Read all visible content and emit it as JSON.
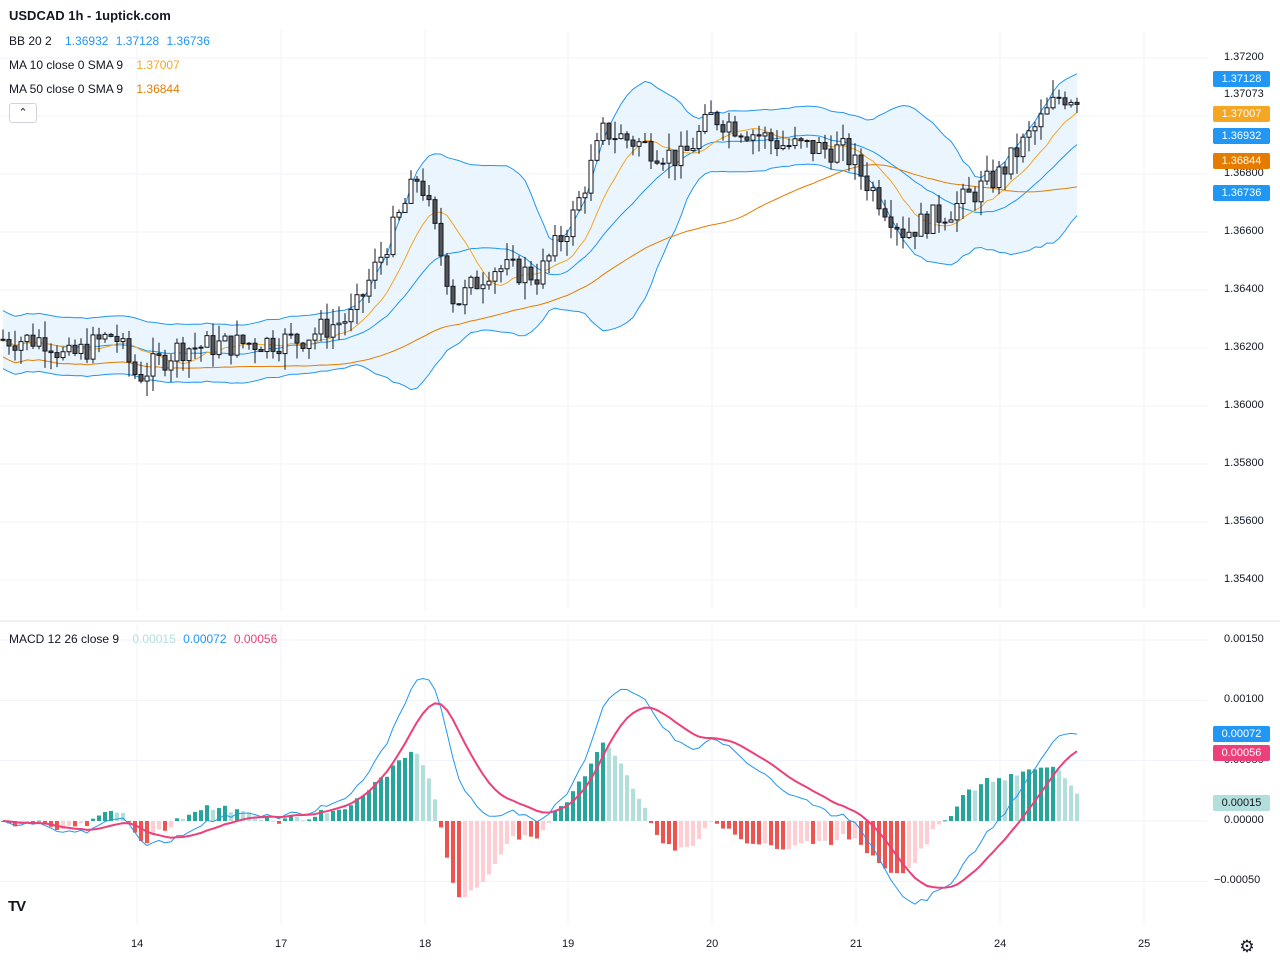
{
  "header": {
    "title": "USDCAD 1h - 1uptick.com",
    "bb": {
      "label": "BB 20 2",
      "v1": "1.36932",
      "v2": "1.37128",
      "v3": "1.36736"
    },
    "ma10": {
      "label": "MA 10 close 0 SMA 9",
      "value": "1.37007"
    },
    "ma50": {
      "label": "MA 50 close 0 SMA 9",
      "value": "1.36844"
    },
    "collapse_icon": "chevron-up-icon"
  },
  "macd_legend": {
    "label": "MACD 12 26 close 9",
    "hist": "0.00015",
    "macd": "0.00072",
    "signal": "0.00056"
  },
  "price_axis": {
    "ticks": [
      "1.37200",
      "1.36800",
      "1.36600",
      "1.36400",
      "1.36200",
      "1.36000",
      "1.35800",
      "1.35600",
      "1.35400"
    ],
    "tick_values": [
      1.372,
      1.368,
      1.366,
      1.364,
      1.362,
      1.36,
      1.358,
      1.356,
      1.354
    ],
    "last_price_label": "1.37073",
    "tags": [
      {
        "text": "1.37128",
        "value": 1.37128,
        "color": "#2196f3"
      },
      {
        "text": "1.37007",
        "value": 1.37007,
        "color": "#f5a623"
      },
      {
        "text": "1.36932",
        "value": 1.36932,
        "color": "#2196f3"
      },
      {
        "text": "1.36844",
        "value": 1.36844,
        "color": "#e57c00"
      },
      {
        "text": "1.36736",
        "value": 1.36736,
        "color": "#2196f3"
      }
    ]
  },
  "macd_axis": {
    "ticks": [
      "0.00150",
      "0.00100",
      "0.00050",
      "0.00000",
      "−0.00050"
    ],
    "tick_values": [
      0.0015,
      0.001,
      0.0005,
      0,
      -0.0005
    ],
    "tags": [
      {
        "text": "0.00072",
        "value": 0.00072,
        "color": "#2196f3",
        "fg": "#ffffff"
      },
      {
        "text": "0.00056",
        "value": 0.00056,
        "color": "#ec407a",
        "fg": "#ffffff"
      },
      {
        "text": "0.00015",
        "value": 0.00015,
        "color": "#b2dfdb",
        "fg": "#131722"
      }
    ]
  },
  "time_axis": [
    "14",
    "17",
    "18",
    "19",
    "20",
    "21",
    "24",
    "25"
  ],
  "colors": {
    "bb_band": "#2196f3",
    "bb_fill": "#e3f2fd",
    "ma10": "#f5a623",
    "ma50": "#e57c00",
    "macd": "#2196f3",
    "signal": "#ec407a",
    "hist_up_strong": "#26a69a",
    "hist_up_weak": "#b2dfdb",
    "hist_down_strong": "#ef5350",
    "hist_down_weak": "#ffcdd2",
    "candle": "#131722"
  },
  "chart_data": {
    "type": "candlestick",
    "symbol": "USDCAD",
    "interval": "1h",
    "price_range": [
      1.3535,
      1.3728
    ],
    "macd_range": [
      -0.0007,
      0.0017
    ],
    "price_series_keypoints": [
      {
        "x": "13 08:00",
        "close": 1.3623
      },
      {
        "x": "13 11:00",
        "close": 1.3616
      },
      {
        "x": "13 19:00",
        "close": 1.3625
      },
      {
        "x": "14 00:00",
        "close": 1.361
      },
      {
        "x": "14 07:00",
        "close": 1.362
      },
      {
        "x": "17 03:00",
        "close": 1.3623
      },
      {
        "x": "17 12:00",
        "close": 1.3631
      },
      {
        "x": "17 23:00",
        "close": 1.368
      },
      {
        "x": "18 05:00",
        "close": 1.3635
      },
      {
        "x": "18 11:00",
        "close": 1.3648
      },
      {
        "x": "18 19:00",
        "close": 1.3645
      },
      {
        "x": "19 01:00",
        "close": 1.3666
      },
      {
        "x": "19 06:00",
        "close": 1.3695
      },
      {
        "x": "19 19:00",
        "close": 1.3685
      },
      {
        "x": "20 00:00",
        "close": 1.37
      },
      {
        "x": "20 12:00",
        "close": 1.369
      },
      {
        "x": "20 22:00",
        "close": 1.3688
      },
      {
        "x": "21 08:00",
        "close": 1.366
      },
      {
        "x": "21 16:00",
        "close": 1.3668
      },
      {
        "x": "24 00:00",
        "close": 1.368
      },
      {
        "x": "24 10:00",
        "close": 1.3707
      }
    ],
    "last_values": {
      "bb_upper": 1.37128,
      "bb_basis": 1.36932,
      "bb_lower": 1.36736,
      "ma10": 1.37007,
      "ma50": 1.36844,
      "last": 1.37073
    },
    "macd_last": {
      "histogram": 0.00015,
      "macd": 0.00072,
      "signal": 0.00056
    }
  }
}
